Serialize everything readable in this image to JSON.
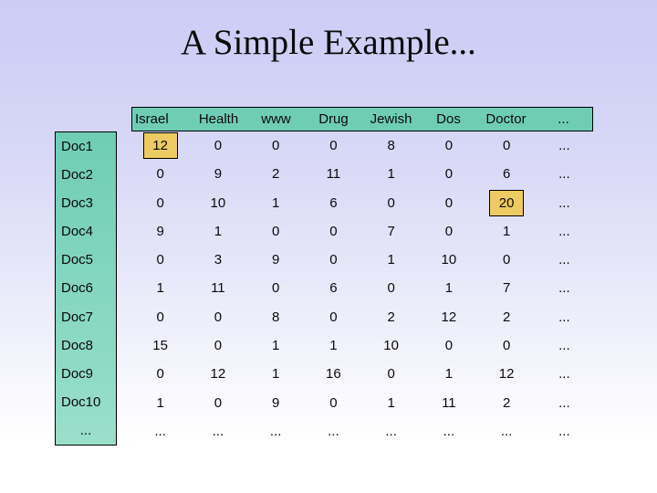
{
  "slide": {
    "title": "A Simple Example..."
  },
  "colors": {
    "background_top": "#ccccf5",
    "background_bottom": "#ffffff",
    "header_box_fill": "#6fcdb5",
    "doc_box_fill_top": "#6fcdb5",
    "doc_box_fill_bottom": "#9adfca",
    "highlight_fill": "#edcb62",
    "border": "#000000",
    "text": "#0a0a0a"
  },
  "table": {
    "columns": [
      "Israel",
      "Health",
      "www",
      "Drug",
      "Jewish",
      "Dos",
      "Doctor",
      "..."
    ],
    "rows": [
      {
        "label": "Doc1",
        "values": [
          "12",
          "0",
          "0",
          "0",
          "8",
          "0",
          "0",
          "..."
        ]
      },
      {
        "label": "Doc2",
        "values": [
          "0",
          "9",
          "2",
          "11",
          "1",
          "0",
          "6",
          "..."
        ]
      },
      {
        "label": "Doc3",
        "values": [
          "0",
          "10",
          "1",
          "6",
          "0",
          "0",
          "20",
          "..."
        ]
      },
      {
        "label": "Doc4",
        "values": [
          "9",
          "1",
          "0",
          "0",
          "7",
          "0",
          "1",
          "..."
        ]
      },
      {
        "label": "Doc5",
        "values": [
          "0",
          "3",
          "9",
          "0",
          "1",
          "10",
          "0",
          "..."
        ]
      },
      {
        "label": "Doc6",
        "values": [
          "1",
          "11",
          "0",
          "6",
          "0",
          "1",
          "7",
          "..."
        ]
      },
      {
        "label": "Doc7",
        "values": [
          "0",
          "0",
          "8",
          "0",
          "2",
          "12",
          "2",
          "..."
        ]
      },
      {
        "label": "Doc8",
        "values": [
          "15",
          "0",
          "1",
          "1",
          "10",
          "0",
          "0",
          "..."
        ]
      },
      {
        "label": "Doc9",
        "values": [
          "0",
          "12",
          "1",
          "16",
          "0",
          "1",
          "12",
          "..."
        ]
      },
      {
        "label": "Doc10",
        "values": [
          "1",
          "0",
          "9",
          "0",
          "1",
          "11",
          "2",
          "..."
        ]
      },
      {
        "label": "...",
        "values": [
          "...",
          "...",
          "...",
          "...",
          "...",
          "...",
          "...",
          "..."
        ]
      }
    ],
    "highlighted_cells": [
      {
        "row": 0,
        "col": 0,
        "value": "12"
      },
      {
        "row": 2,
        "col": 6,
        "value": "20"
      }
    ]
  }
}
